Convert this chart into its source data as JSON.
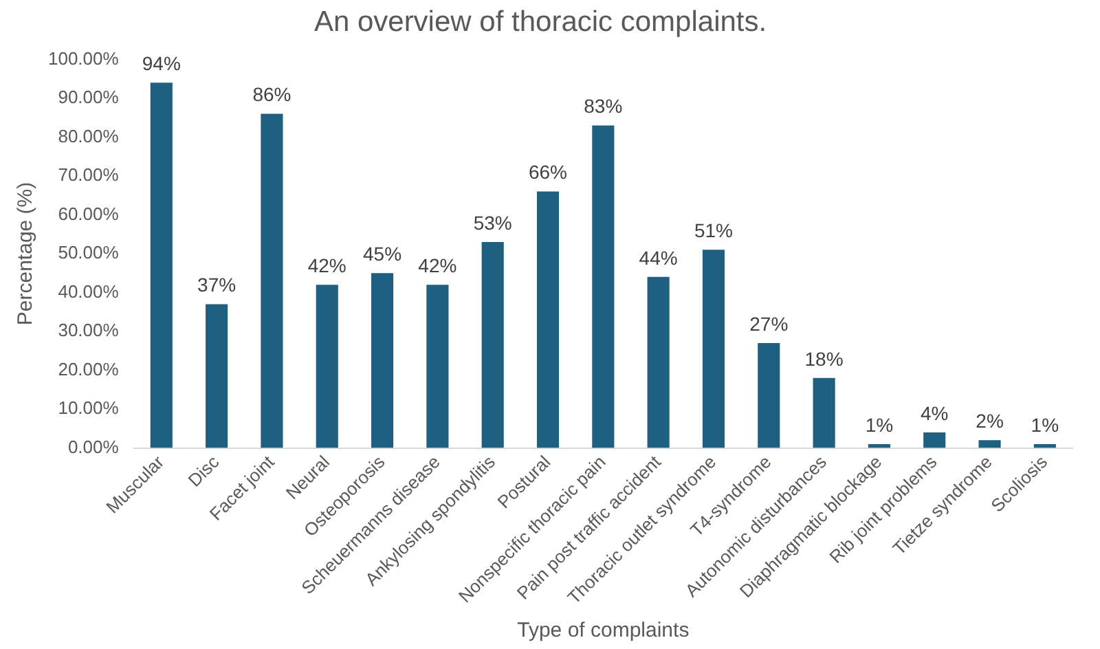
{
  "chart_data": {
    "type": "bar",
    "title": "An overview of thoracic complaints.",
    "xlabel": "Type of complaints",
    "ylabel": "Percentage (%)",
    "categories": [
      "Muscular",
      "Disc",
      "Facet joint",
      "Neural",
      "Osteoporosis",
      "Scheuermanns disease",
      "Ankylosing spondylitis",
      "Postural",
      "Nonspecific thoracic pain",
      "Pain post traffic accident",
      "Thoracic outlet syndrome",
      "T4-syndrome",
      "Autonomic disturbances",
      "Diaphragmatic blockage",
      "Rib joint problems",
      "Tietze syndrome",
      "Scoliosis"
    ],
    "values": [
      94,
      37,
      86,
      42,
      45,
      42,
      53,
      66,
      83,
      44,
      51,
      27,
      18,
      1,
      4,
      2,
      1
    ],
    "value_labels": [
      "94%",
      "37%",
      "86%",
      "42%",
      "45%",
      "42%",
      "53%",
      "66%",
      "83%",
      "44%",
      "51%",
      "27%",
      "18%",
      "1%",
      "4%",
      "2%",
      "1%"
    ],
    "color": "#1f5f7f",
    "ylim": [
      0,
      100
    ],
    "yticks": [
      {
        "value": 0,
        "label": "0.00%"
      },
      {
        "value": 10,
        "label": "10.00%"
      },
      {
        "value": 20,
        "label": "20.00%"
      },
      {
        "value": 30,
        "label": "30.00%"
      },
      {
        "value": 40,
        "label": "40.00%"
      },
      {
        "value": 50,
        "label": "50.00%"
      },
      {
        "value": 60,
        "label": "60.00%"
      },
      {
        "value": 70,
        "label": "70.00%"
      },
      {
        "value": 80,
        "label": "80.00%"
      },
      {
        "value": 90,
        "label": "90.00%"
      },
      {
        "value": 100,
        "label": "100.00%"
      }
    ],
    "grid": false,
    "legend": false
  }
}
